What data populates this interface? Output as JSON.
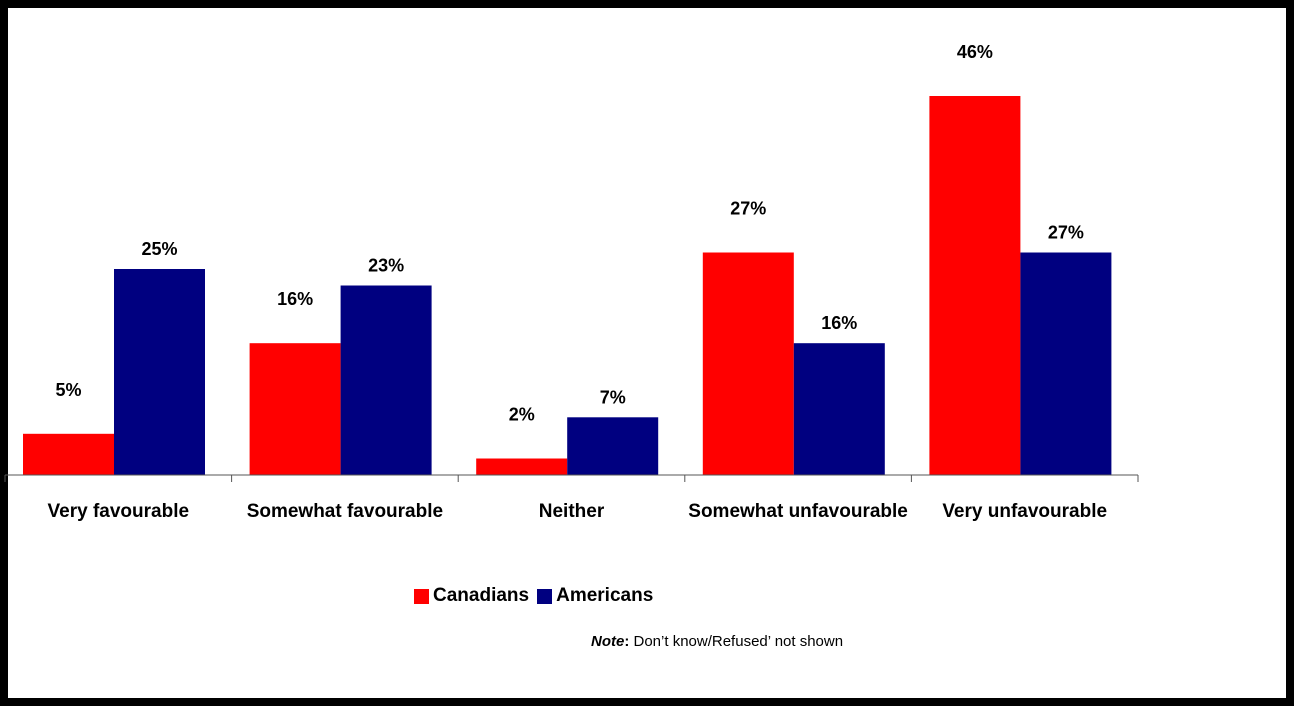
{
  "chart_data": {
    "type": "bar",
    "categories": [
      "Very favourable",
      "Somewhat favourable",
      "Neither",
      "Somewhat unfavourable",
      "Very unfavourable"
    ],
    "series": [
      {
        "name": "Canadians",
        "values": [
          5,
          16,
          2,
          27,
          46
        ],
        "labels": [
          "5%",
          "16%",
          "2%",
          "27%",
          "46%"
        ],
        "color": "#ff0000"
      },
      {
        "name": "Americans",
        "values": [
          25,
          23,
          7,
          16,
          27
        ],
        "labels": [
          "25%",
          "23%",
          "7%",
          "16%",
          "27%"
        ],
        "color": "#000080"
      }
    ],
    "ylim": [
      0,
      46
    ],
    "grid": false,
    "legend_position": "bottom"
  },
  "legend": {
    "canadians": "Canadians",
    "americans": "Americans"
  },
  "note": {
    "lead": "Note",
    "colon": ":",
    "text": " Don’t know/Refused’ not shown"
  }
}
